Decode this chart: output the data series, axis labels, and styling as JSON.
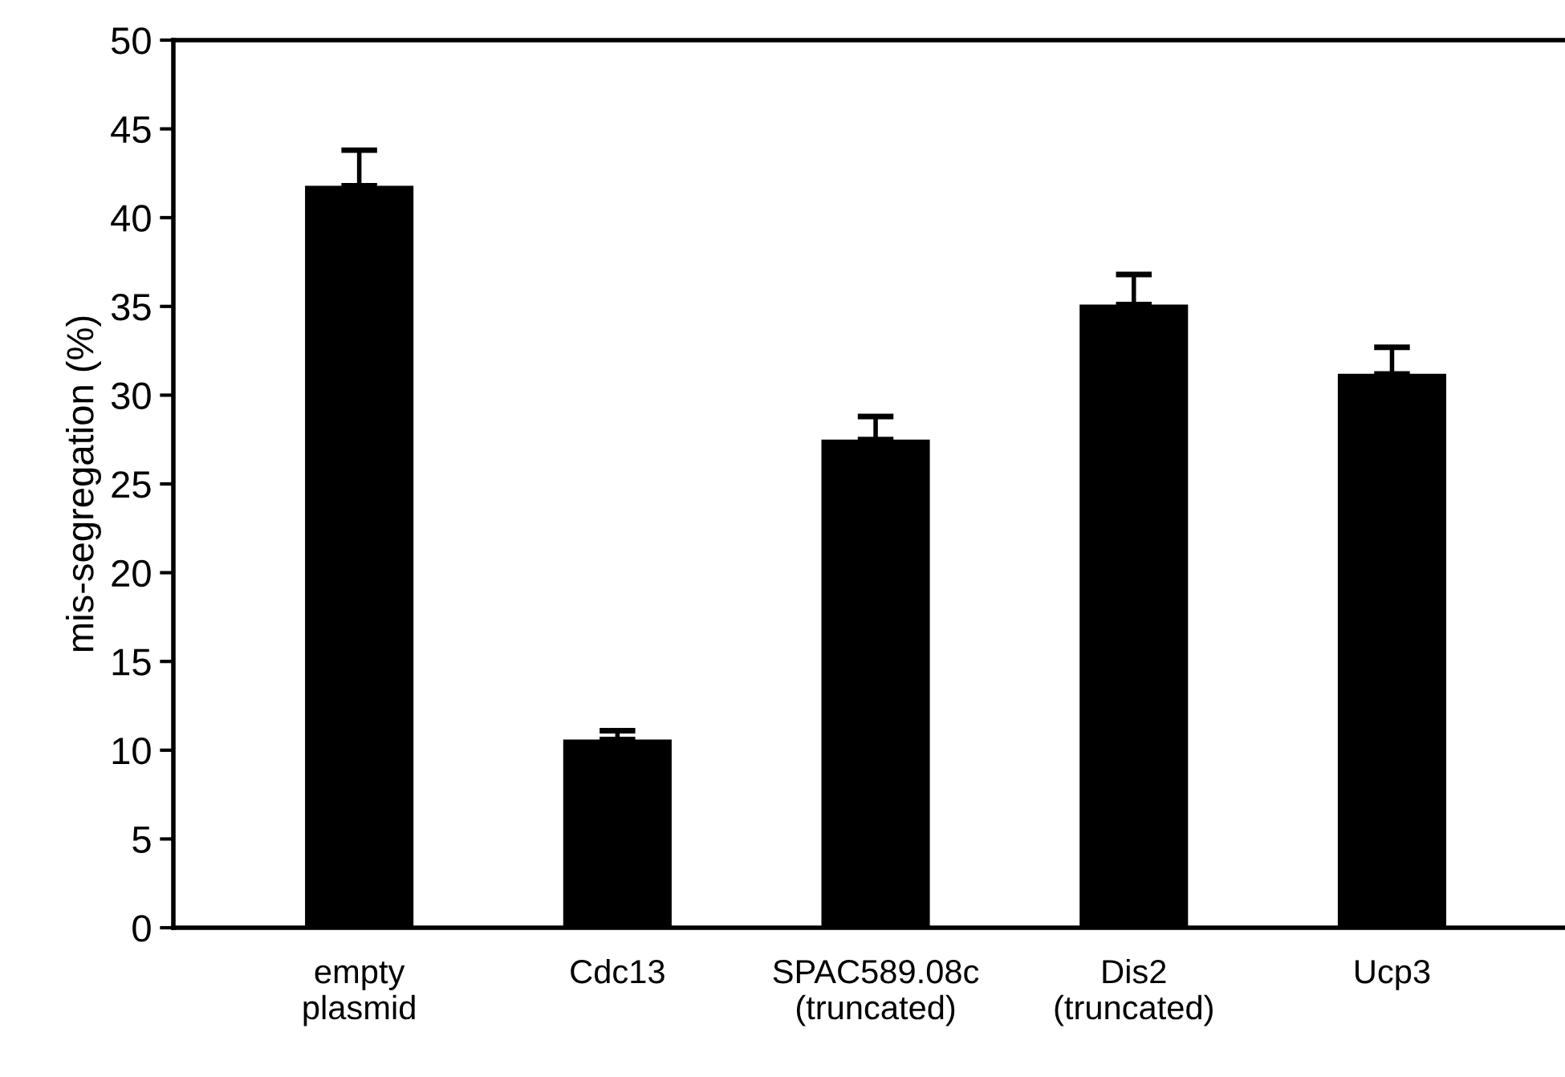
{
  "chart_data": {
    "type": "bar",
    "ylabel": "mis-segregation (%)",
    "categories": [
      "empty\nplasmid",
      "Cdc13",
      "SPAC589.08c\n(truncated)",
      "Dis2\n(truncated)",
      "Ucp3"
    ],
    "values": [
      41.8,
      10.6,
      27.5,
      35.1,
      31.2
    ],
    "errors": [
      [
        41.8,
        43.8
      ],
      [
        10.6,
        11.1
      ],
      [
        27.5,
        28.8
      ],
      [
        35.1,
        36.8
      ],
      [
        31.2,
        32.7
      ]
    ],
    "color": "#000000",
    "ylim": [
      0,
      50
    ],
    "yticks": [
      0,
      5,
      10,
      15,
      20,
      25,
      30,
      35,
      40,
      45,
      50
    ],
    "grid": false
  }
}
